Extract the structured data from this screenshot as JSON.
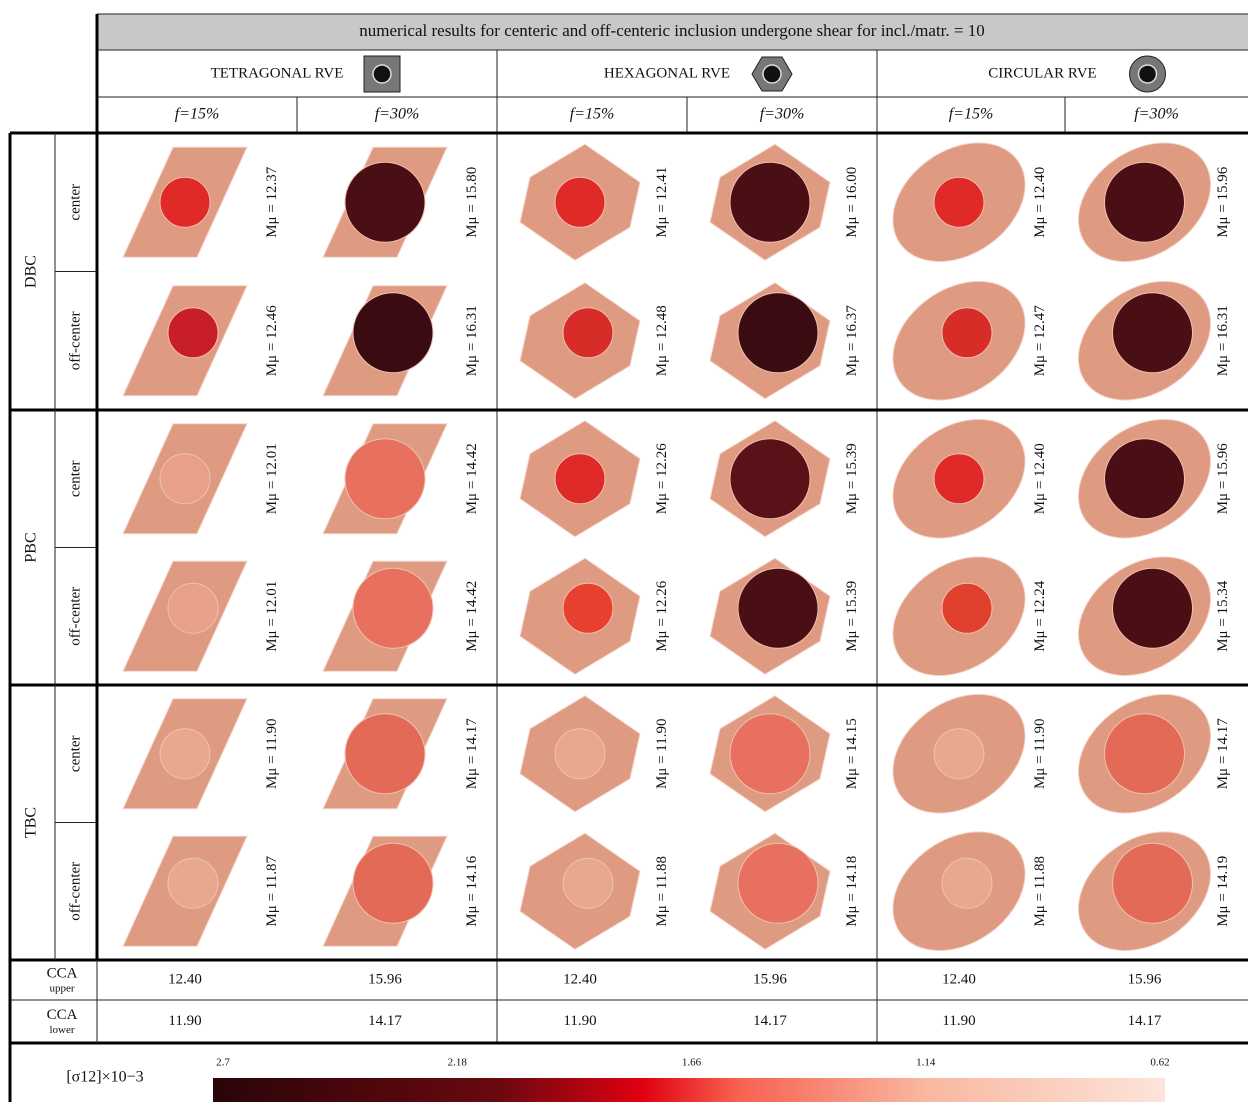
{
  "title": "numerical results for centeric and off-centeric inclusion undergone shear for incl./matr. = 10",
  "rve_types": [
    "TETRAGONAL RVE",
    "HEXAGONAL RVE",
    "CIRCULAR RVE"
  ],
  "fractions": [
    "f=15%",
    "f=30%"
  ],
  "mu_label": "Mμ =",
  "boundary_conditions": [
    {
      "name": "DBC",
      "rows": [
        {
          "name": "center",
          "values": [
            "12.37",
            "15.80",
            "12.41",
            "16.00",
            "12.40",
            "15.96"
          ]
        },
        {
          "name": "off-center",
          "values": [
            "12.46",
            "16.31",
            "12.48",
            "16.37",
            "12.47",
            "16.31"
          ]
        }
      ]
    },
    {
      "name": "PBC",
      "rows": [
        {
          "name": "center",
          "values": [
            "12.01",
            "14.42",
            "12.26",
            "15.39",
            "12.40",
            "15.96"
          ]
        },
        {
          "name": "off-center",
          "values": [
            "12.01",
            "14.42",
            "12.26",
            "15.39",
            "12.24",
            "15.34"
          ]
        }
      ]
    },
    {
      "name": "TBC",
      "rows": [
        {
          "name": "center",
          "values": [
            "11.90",
            "14.17",
            "11.90",
            "14.15",
            "11.90",
            "14.17"
          ]
        },
        {
          "name": "off-center",
          "values": [
            "11.87",
            "14.16",
            "11.88",
            "14.18",
            "11.88",
            "14.19"
          ]
        }
      ]
    }
  ],
  "cca": [
    {
      "label": "CCA",
      "sub": "upper",
      "values": [
        "12.40",
        "15.96",
        "12.40",
        "15.96",
        "12.40",
        "15.96"
      ]
    },
    {
      "label": "CCA",
      "sub": "lower",
      "values": [
        "11.90",
        "14.17",
        "11.90",
        "14.17",
        "11.90",
        "14.17"
      ]
    }
  ],
  "colorbar": {
    "label": "[σ12]×10−3",
    "ticks": [
      "2.7",
      "2.18",
      "1.66",
      "1.14",
      "0.62"
    ]
  }
}
